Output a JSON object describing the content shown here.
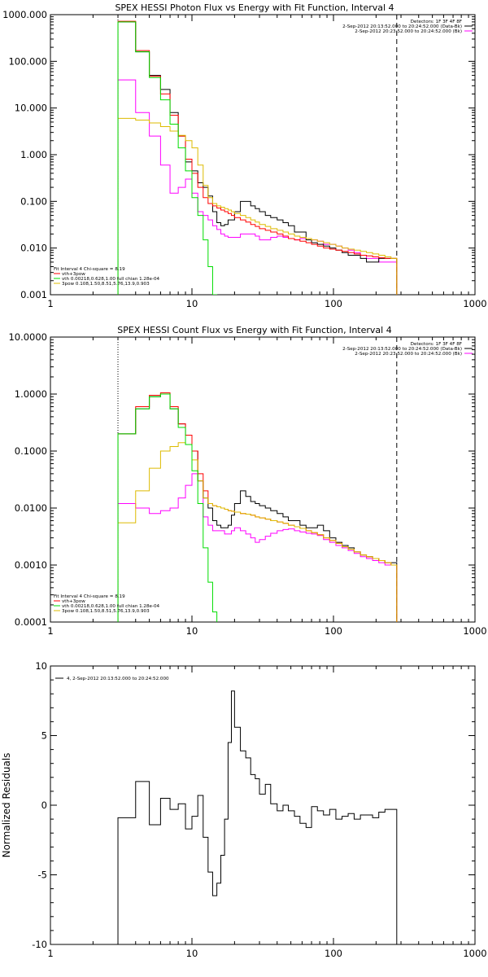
{
  "chart_data": [
    {
      "type": "line",
      "title": "SPEX HESSI Photon Flux vs Energy with Fit Function, Interval 4",
      "xscale": "log",
      "yscale": "log",
      "xlim": [
        1,
        1000
      ],
      "ylim": [
        0.001,
        1000
      ],
      "x_ticks": [
        "1",
        "10",
        "100",
        "1000"
      ],
      "y_ticks": [
        "0.001",
        "0.010",
        "0.100",
        "1.000",
        "10.000",
        "100.000",
        "1000.000"
      ],
      "legend_top_right": [
        "Detectors: 1F 3F 4F 8F",
        "2-Sep-2012 20:13:52.000 to 20:24:52.000 (Data-Bk)",
        "2-Sep-2012 20:23:52.000 to 20:24:52.000 (Bk)"
      ],
      "legend_bottom_left": [
        "Fit Interval 4   Chi-square = 8.19",
        "vth+3pow",
        "vth 0.00218,0.628,1.00  full chian 1.28e-04",
        "3pow 0.108,1.50,8.51,5.76,13.9,0.903"
      ],
      "colors": {
        "data": "#000000",
        "background": "#ff00ff",
        "total": "#ff0000",
        "vth": "#00dd00",
        "pow": "#ddbb00"
      },
      "vlines": [
        {
          "x": 3.0,
          "style": "dotted"
        },
        {
          "x": 280,
          "style": "dashed"
        }
      ],
      "edges": [
        3.0,
        3.5,
        4.0,
        4.5,
        5.0,
        5.5,
        6.0,
        6.5,
        7.0,
        7.5,
        8.0,
        8.5,
        9.0,
        9.5,
        10.0,
        11,
        12,
        13,
        14,
        15,
        16,
        17,
        18,
        19,
        20,
        22,
        24,
        26,
        28,
        30,
        33,
        36,
        40,
        44,
        48,
        53,
        58,
        64,
        70,
        77,
        85,
        94,
        104,
        115,
        127,
        140,
        155,
        171,
        189,
        209,
        231,
        255,
        280
      ],
      "series": [
        {
          "name": "data",
          "values": [
            700,
            700,
            160,
            160,
            50,
            50,
            25,
            25,
            8,
            8,
            2.5,
            2.5,
            0.7,
            0.7,
            0.45,
            0.25,
            0.2,
            0.13,
            0.06,
            0.035,
            0.03,
            0.032,
            0.04,
            0.04,
            0.06,
            0.1,
            0.1,
            0.08,
            0.07,
            0.06,
            0.05,
            0.045,
            0.04,
            0.035,
            0.03,
            0.022,
            0.022,
            0.015,
            0.013,
            0.012,
            0.011,
            0.01,
            0.009,
            0.008,
            0.007,
            0.007,
            0.006,
            0.005,
            0.005,
            0.006,
            0.006,
            0.006
          ]
        },
        {
          "name": "background",
          "values": [
            40,
            40,
            8,
            8,
            2.5,
            2.5,
            0.6,
            0.6,
            0.15,
            0.15,
            0.2,
            0.2,
            0.3,
            0.3,
            0.15,
            0.06,
            0.05,
            0.04,
            0.03,
            0.025,
            0.02,
            0.018,
            0.017,
            0.017,
            0.017,
            0.02,
            0.02,
            0.02,
            0.018,
            0.015,
            0.015,
            0.017,
            0.018,
            0.017,
            0.016,
            0.015,
            0.016,
            0.016,
            0.015,
            0.014,
            0.012,
            0.012,
            0.011,
            0.01,
            0.009,
            0.008,
            0.007,
            0.006,
            0.006,
            0.005,
            0.005,
            0.005
          ]
        },
        {
          "name": "total",
          "values": [
            720,
            720,
            170,
            170,
            48,
            48,
            20,
            20,
            7,
            7,
            2.5,
            2.5,
            0.8,
            0.8,
            0.4,
            0.2,
            0.12,
            0.09,
            0.08,
            0.072,
            0.065,
            0.06,
            0.055,
            0.05,
            0.045,
            0.04,
            0.036,
            0.032,
            0.029,
            0.026,
            0.024,
            0.022,
            0.02,
            0.018,
            0.016,
            0.015,
            0.014,
            0.013,
            0.012,
            0.011,
            0.01,
            0.0095,
            0.009,
            0.0085,
            0.008,
            0.0075,
            0.007,
            0.0068,
            0.0065,
            0.0062,
            0.006,
            0.006
          ]
        },
        {
          "name": "vth",
          "values": [
            700,
            700,
            160,
            160,
            45,
            45,
            15,
            15,
            4.5,
            4.5,
            1.4,
            1.4,
            0.45,
            0.45,
            0.12,
            0.05,
            0.015,
            0.004,
            0.001,
            0.0003
          ]
        },
        {
          "name": "pow",
          "values": [
            6,
            6,
            5.5,
            5.5,
            4.8,
            4.8,
            4,
            4,
            3.2,
            3.2,
            2.6,
            2.6,
            2.0,
            2.0,
            1.4,
            0.6,
            0.22,
            0.12,
            0.09,
            0.08,
            0.075,
            0.07,
            0.065,
            0.06,
            0.055,
            0.05,
            0.045,
            0.04,
            0.036,
            0.032,
            0.029,
            0.026,
            0.024,
            0.022,
            0.02,
            0.018,
            0.017,
            0.016,
            0.015,
            0.014,
            0.013,
            0.012,
            0.011,
            0.01,
            0.0095,
            0.009,
            0.0085,
            0.008,
            0.0075,
            0.007,
            0.0065,
            0.006
          ]
        }
      ]
    },
    {
      "type": "line",
      "title": "SPEX HESSI Count Flux vs Energy with Fit Function, Interval 4",
      "xscale": "log",
      "yscale": "log",
      "xlim": [
        1,
        1000
      ],
      "ylim": [
        0.0001,
        10
      ],
      "x_ticks": [
        "1",
        "10",
        "100",
        "1000"
      ],
      "y_ticks": [
        "0.0001",
        "0.0010",
        "0.0100",
        "0.1000",
        "1.0000",
        "10.0000"
      ],
      "legend_top_right": [
        "Detectors: 1F 3F 4F 8F",
        "2-Sep-2012 20:13:52.000 to 20:24:52.000 (Data-Bk)",
        "2-Sep-2012 20:23:52.000 to 20:24:52.000 (Bk)"
      ],
      "legend_bottom_left": [
        "Fit Interval 4   Chi-square = 8.19",
        "vth+3pow",
        "vth 0.00218,0.628,1.00  full chian 1.28e-04",
        "3pow 0.108,1.50,8.51,5.76,13.9,0.903"
      ],
      "colors": {
        "data": "#000000",
        "background": "#ff00ff",
        "total": "#ff0000",
        "vth": "#00dd00",
        "pow": "#ddbb00"
      },
      "vlines": [
        {
          "x": 3.0,
          "style": "dotted"
        },
        {
          "x": 280,
          "style": "dashed"
        }
      ],
      "edges": [
        3.0,
        3.5,
        4.0,
        4.5,
        5.0,
        5.5,
        6.0,
        6.5,
        7.0,
        7.5,
        8.0,
        8.5,
        9.0,
        9.5,
        10.0,
        11,
        12,
        13,
        14,
        15,
        16,
        17,
        18,
        19,
        20,
        22,
        24,
        26,
        28,
        30,
        33,
        36,
        40,
        44,
        48,
        53,
        58,
        64,
        70,
        77,
        85,
        94,
        104,
        115,
        127,
        140,
        155,
        171,
        189,
        209,
        231,
        255,
        280
      ],
      "series": [
        {
          "name": "data",
          "values": [
            0.2,
            0.2,
            0.55,
            0.55,
            0.9,
            0.9,
            1.0,
            1.0,
            0.55,
            0.55,
            0.3,
            0.3,
            0.19,
            0.19,
            0.1,
            0.03,
            0.015,
            0.01,
            0.006,
            0.005,
            0.0045,
            0.0045,
            0.005,
            0.0075,
            0.012,
            0.02,
            0.016,
            0.013,
            0.012,
            0.011,
            0.01,
            0.009,
            0.008,
            0.007,
            0.006,
            0.006,
            0.005,
            0.0045,
            0.0045,
            0.005,
            0.004,
            0.003,
            0.0025,
            0.0022,
            0.002,
            0.0017,
            0.0015,
            0.0014,
            0.0013,
            0.0012,
            0.0011,
            0.0011
          ]
        },
        {
          "name": "background",
          "values": [
            0.012,
            0.012,
            0.01,
            0.01,
            0.008,
            0.008,
            0.009,
            0.009,
            0.01,
            0.01,
            0.015,
            0.015,
            0.025,
            0.025,
            0.04,
            0.03,
            0.007,
            0.005,
            0.004,
            0.004,
            0.004,
            0.0035,
            0.0035,
            0.004,
            0.0045,
            0.004,
            0.0035,
            0.003,
            0.0025,
            0.0028,
            0.0032,
            0.0036,
            0.004,
            0.0042,
            0.0043,
            0.004,
            0.0038,
            0.0036,
            0.0035,
            0.0033,
            0.0028,
            0.0025,
            0.0022,
            0.002,
            0.0018,
            0.0016,
            0.0014,
            0.0013,
            0.0012,
            0.0011,
            0.001,
            0.001
          ]
        },
        {
          "name": "total",
          "values": [
            0.2,
            0.2,
            0.6,
            0.6,
            0.95,
            0.95,
            1.05,
            1.05,
            0.6,
            0.6,
            0.3,
            0.3,
            0.19,
            0.19,
            0.1,
            0.04,
            0.02,
            0.012,
            0.011,
            0.0105,
            0.01,
            0.0095,
            0.009,
            0.0088,
            0.0085,
            0.008,
            0.0078,
            0.0075,
            0.007,
            0.0067,
            0.0064,
            0.006,
            0.0057,
            0.0054,
            0.005,
            0.0047,
            0.0044,
            0.004,
            0.0037,
            0.0034,
            0.003,
            0.0027,
            0.0024,
            0.0021,
            0.0019,
            0.0017,
            0.0015,
            0.0014,
            0.0013,
            0.0012,
            0.0011,
            0.001
          ]
        },
        {
          "name": "vth",
          "values": [
            0.2,
            0.2,
            0.55,
            0.55,
            0.9,
            0.9,
            1.0,
            1.0,
            0.55,
            0.55,
            0.26,
            0.26,
            0.13,
            0.13,
            0.045,
            0.012,
            0.002,
            0.0005,
            0.00015
          ]
        },
        {
          "name": "pow",
          "values": [
            0.0055,
            0.0055,
            0.02,
            0.02,
            0.05,
            0.05,
            0.1,
            0.1,
            0.12,
            0.12,
            0.14,
            0.14,
            0.13,
            0.13,
            0.07,
            0.03,
            0.015,
            0.012,
            0.011,
            0.0105,
            0.01,
            0.0095,
            0.009,
            0.0088,
            0.0085,
            0.008,
            0.0078,
            0.0075,
            0.007,
            0.0067,
            0.0064,
            0.006,
            0.0057,
            0.0054,
            0.005,
            0.0047,
            0.0044,
            0.004,
            0.0037,
            0.0034,
            0.003,
            0.0027,
            0.0024,
            0.0021,
            0.0019,
            0.0017,
            0.0015,
            0.0014,
            0.0013,
            0.0012,
            0.0011,
            0.001
          ]
        }
      ]
    },
    {
      "type": "line",
      "title": "",
      "ylabel": "Normalized Residuals",
      "xscale": "log",
      "yscale": "linear",
      "xlim": [
        1,
        1000
      ],
      "ylim": [
        -10,
        10
      ],
      "x_ticks": [
        "1",
        "10",
        "100",
        "1000"
      ],
      "y_ticks": [
        "-10",
        "-5",
        "0",
        "5",
        "10"
      ],
      "legend_top_left": [
        "4,  2-Sep-2012 20:13:52.000 to 20:24:52.000"
      ],
      "colors": {
        "data": "#000000"
      },
      "edges": [
        3.0,
        3.5,
        4.0,
        4.5,
        5.0,
        5.5,
        6.0,
        6.5,
        7.0,
        7.5,
        8.0,
        8.5,
        9.0,
        9.5,
        10.0,
        11,
        12,
        13,
        14,
        15,
        16,
        17,
        18,
        19,
        20,
        22,
        24,
        26,
        28,
        30,
        33,
        36,
        40,
        44,
        48,
        53,
        58,
        64,
        70,
        77,
        85,
        94,
        104,
        115,
        127,
        140,
        155,
        171,
        189,
        209,
        231,
        255,
        280
      ],
      "series": [
        {
          "name": "residuals",
          "values": [
            -0.9,
            -0.9,
            1.7,
            1.7,
            -1.4,
            -1.4,
            0.5,
            0.5,
            -0.3,
            -0.3,
            0.1,
            0.1,
            -1.7,
            -1.7,
            -0.8,
            0.7,
            -2.3,
            -4.8,
            -6.5,
            -5.6,
            -3.6,
            -1.0,
            4.5,
            8.2,
            5.6,
            3.9,
            3.4,
            2.2,
            1.9,
            0.8,
            1.5,
            0.1,
            -0.4,
            0.0,
            -0.4,
            -0.8,
            -1.3,
            -1.6,
            -0.1,
            -0.4,
            -0.7,
            -0.3,
            -1.0,
            -0.8,
            -0.6,
            -1.0,
            -0.7,
            -0.7,
            -0.9,
            -0.5,
            -0.3,
            -0.3
          ]
        }
      ]
    }
  ]
}
